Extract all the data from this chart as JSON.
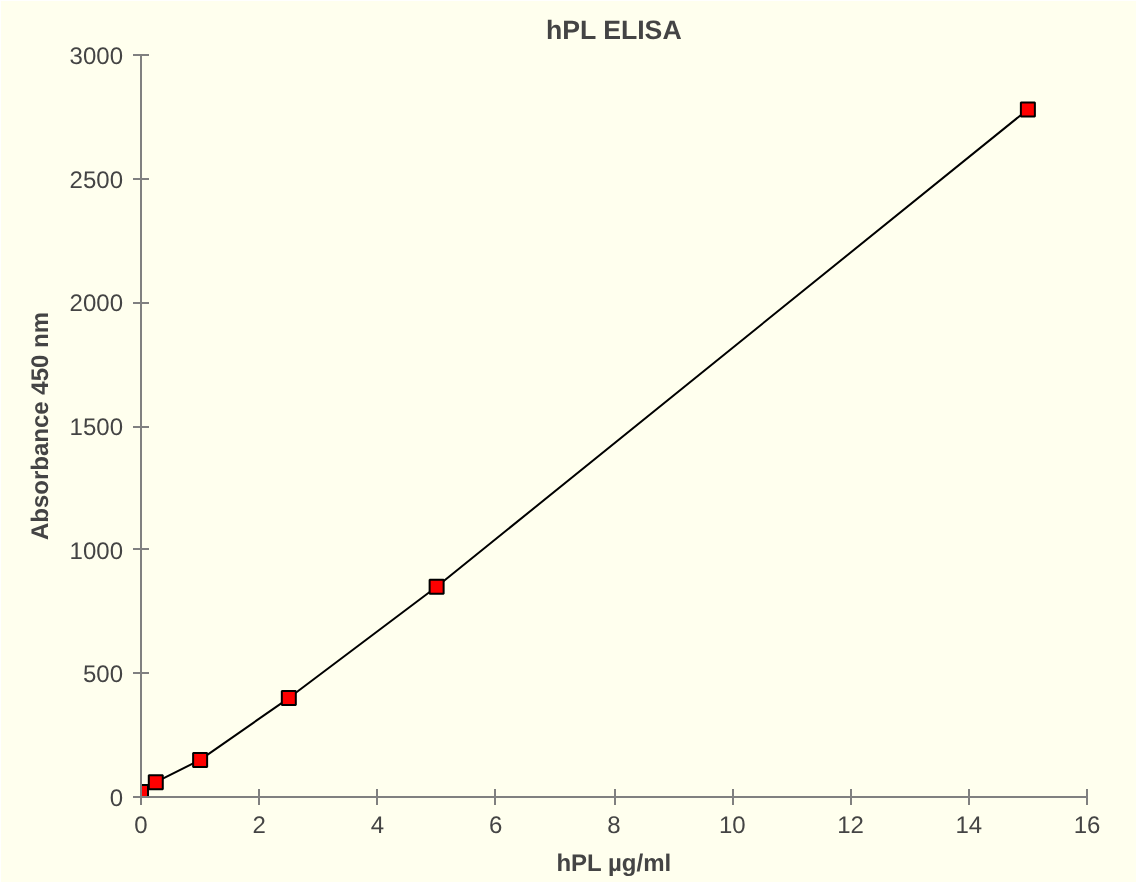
{
  "chart_data": {
    "type": "line",
    "title": "hPL ELISA",
    "xlabel": "hPL µg/ml",
    "ylabel": "Absorbance 450 nm",
    "x": [
      0,
      0.25,
      1,
      2.5,
      5,
      15
    ],
    "series": [
      {
        "color": "#ff0000",
        "values": [
          20,
          60,
          150,
          400,
          850,
          2780
        ]
      }
    ],
    "xlim": [
      0,
      16
    ],
    "xticks": [
      0,
      2,
      4,
      6,
      8,
      10,
      12,
      14,
      16
    ],
    "ylim": [
      0,
      3000
    ],
    "yticks": [
      0,
      500,
      1000,
      1500,
      2000,
      2500,
      3000
    ],
    "grid": false,
    "marker": "square",
    "line_style": "solid"
  }
}
